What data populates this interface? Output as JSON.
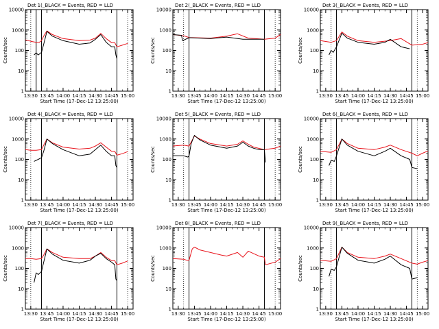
{
  "figure": {
    "background": "#ffffff",
    "axis_color": "#000000"
  },
  "chart_data": [
    {
      "type": "line",
      "title": "Det  1(_BLACK = Events, RED = LLD",
      "xlabel": "Start Time (17-Dec-12 13:25:00)",
      "ylabel": "Counts/sec",
      "xlim": [
        "13:25",
        "15:05"
      ],
      "ylim": [
        1,
        10000
      ],
      "ylog": true,
      "xtick_labels": [
        "13:30",
        "13:45",
        "14:00",
        "14:15",
        "14:30",
        "14:45",
        "15:00"
      ],
      "ytick_labels": [
        "1",
        "10",
        "100",
        "1000",
        "10000"
      ],
      "vlines_dotted": [
        "13:30",
        "15:00"
      ],
      "vlines_solid": [
        "13:35",
        "13:40",
        "14:50"
      ],
      "series": [
        {
          "color": "#000000",
          "x": [
            "13:33",
            "13:35",
            "13:37",
            "13:40",
            "13:42",
            "13:45",
            "13:50",
            "14:00",
            "14:15",
            "14:25",
            "14:30",
            "14:35",
            "14:40",
            "14:45",
            "14:48",
            "14:49",
            "14:50"
          ],
          "y": [
            60,
            75,
            60,
            80,
            200,
            850,
            500,
            300,
            200,
            230,
            350,
            600,
            250,
            150,
            150,
            60,
            40
          ]
        },
        {
          "color": "#e8141c",
          "x": [
            "13:25",
            "13:30",
            "13:35",
            "13:38",
            "13:40",
            "13:42",
            "13:45",
            "13:50",
            "14:00",
            "14:15",
            "14:25",
            "14:30",
            "14:35",
            "14:40",
            "14:45",
            "14:48",
            "14:50",
            "14:55",
            "15:00"
          ],
          "y": [
            330,
            280,
            250,
            250,
            300,
            500,
            900,
            600,
            380,
            300,
            320,
            400,
            680,
            380,
            240,
            240,
            150,
            180,
            220
          ]
        }
      ]
    },
    {
      "type": "line",
      "title": "Det  2(_BLACK = Events, RED = LLD",
      "xlabel": "Start Time (17-Dec-12 13:25:00)",
      "ylabel": "Counts/sec",
      "xlim": [
        "13:25",
        "15:05"
      ],
      "ylim": [
        1,
        10000
      ],
      "ylog": true,
      "xtick_labels": [
        "13:30",
        "13:45",
        "14:00",
        "14:15",
        "14:30",
        "14:45",
        "15:00"
      ],
      "ytick_labels": [
        "1",
        "10",
        "100",
        "1000",
        "10000"
      ],
      "vlines_dotted": [
        "13:35",
        "15:00"
      ],
      "vlines_solid": [
        "13:40",
        "14:50"
      ],
      "series": [
        {
          "color": "#000000",
          "x": [
            "13:25",
            "13:33",
            "13:34",
            "13:40",
            "14:00",
            "14:15",
            "14:30",
            "14:45",
            "14:50"
          ],
          "y": [
            600,
            550,
            300,
            420,
            380,
            450,
            350,
            350,
            350
          ]
        },
        {
          "color": "#e8141c",
          "x": [
            "13:25",
            "13:35",
            "13:40",
            "14:00",
            "14:15",
            "14:25",
            "14:35",
            "14:50",
            "15:00",
            "15:05"
          ],
          "y": [
            600,
            520,
            430,
            400,
            500,
            650,
            400,
            350,
            400,
            600
          ]
        }
      ]
    },
    {
      "type": "line",
      "title": "Det  3(_BLACK = Events, RED = LLD",
      "xlabel": "Start Time (17-Dec-12 13:25:00)",
      "ylabel": "Counts/sec",
      "xlim": [
        "13:25",
        "15:05"
      ],
      "ylim": [
        1,
        10000
      ],
      "ylog": true,
      "xtick_labels": [
        "13:30",
        "13:45",
        "14:00",
        "14:15",
        "14:30",
        "14:45",
        "15:00"
      ],
      "ytick_labels": [
        "1",
        "10",
        "100",
        "1000",
        "10000"
      ],
      "vlines_dotted": [
        "13:35",
        "14:55"
      ],
      "vlines_solid": [
        "13:40",
        "14:50"
      ],
      "series": [
        {
          "color": "#000000",
          "x": [
            "13:33",
            "13:35",
            "13:37",
            "13:40",
            "13:45",
            "13:50",
            "14:00",
            "14:15",
            "14:25",
            "14:30",
            "14:40",
            "14:48"
          ],
          "y": [
            60,
            100,
            80,
            150,
            700,
            400,
            250,
            200,
            250,
            350,
            150,
            120
          ]
        },
        {
          "color": "#e8141c",
          "x": [
            "13:25",
            "13:35",
            "13:40",
            "13:45",
            "13:50",
            "14:00",
            "14:15",
            "14:30",
            "14:40",
            "14:50",
            "15:00",
            "15:05"
          ],
          "y": [
            300,
            250,
            300,
            800,
            500,
            300,
            250,
            300,
            380,
            180,
            200,
            240
          ]
        }
      ]
    },
    {
      "type": "line",
      "title": "Det  4(_BLACK = Events, RED = LLD",
      "xlabel": "Start Time (17-Dec-12 13:25:00)",
      "ylabel": "Counts/sec",
      "xlim": [
        "13:25",
        "15:05"
      ],
      "ylim": [
        1,
        10000
      ],
      "ylog": true,
      "xtick_labels": [
        "13:30",
        "13:45",
        "14:00",
        "14:15",
        "14:30",
        "14:45",
        "15:00"
      ],
      "ytick_labels": [
        "1",
        "10",
        "100",
        "1000",
        "10000"
      ],
      "vlines_dotted": [
        "13:30",
        "15:00"
      ],
      "vlines_solid": [
        "13:40",
        "14:50"
      ],
      "series": [
        {
          "color": "#000000",
          "x": [
            "13:33",
            "13:37",
            "13:40",
            "13:42",
            "13:45",
            "13:50",
            "14:00",
            "14:15",
            "14:25",
            "14:30",
            "14:35",
            "14:40",
            "14:45",
            "14:48",
            "14:49",
            "14:50"
          ],
          "y": [
            80,
            100,
            120,
            250,
            1000,
            600,
            300,
            150,
            180,
            300,
            500,
            250,
            150,
            150,
            50,
            40
          ]
        },
        {
          "color": "#e8141c",
          "x": [
            "13:25",
            "13:30",
            "13:35",
            "13:40",
            "13:42",
            "13:45",
            "13:50",
            "14:00",
            "14:15",
            "14:25",
            "14:30",
            "14:35",
            "14:40",
            "14:45",
            "14:48",
            "14:50",
            "14:55",
            "15:00"
          ],
          "y": [
            300,
            280,
            280,
            300,
            500,
            1000,
            650,
            400,
            320,
            350,
            450,
            650,
            400,
            250,
            250,
            160,
            190,
            240
          ]
        }
      ]
    },
    {
      "type": "line",
      "title": "Det  5(_BLACK = Events, RED = LLD",
      "xlabel": "Start Time (17-Dec-12 13:25:00)",
      "ylabel": "Counts/sec",
      "xlim": [
        "13:25",
        "15:05"
      ],
      "ylim": [
        1,
        10000
      ],
      "ylog": true,
      "xtick_labels": [
        "13:30",
        "13:45",
        "14:00",
        "14:15",
        "14:30",
        "14:45",
        "15:00"
      ],
      "ytick_labels": [
        "1",
        "10",
        "100",
        "1000",
        "10000"
      ],
      "vlines_dotted": [
        "13:35",
        "15:00"
      ],
      "vlines_solid": [
        "13:40",
        "14:50"
      ],
      "series": [
        {
          "color": "#000000",
          "x": [
            "13:25",
            "13:35",
            "13:39",
            "13:40",
            "13:42",
            "13:45",
            "13:50",
            "14:00",
            "14:15",
            "14:25",
            "14:30",
            "14:35",
            "14:40",
            "14:45",
            "14:50",
            "14:51"
          ],
          "y": [
            150,
            150,
            130,
            150,
            600,
            1500,
            900,
            500,
            350,
            450,
            700,
            450,
            350,
            300,
            300,
            70
          ]
        },
        {
          "color": "#e8141c",
          "x": [
            "13:25",
            "13:35",
            "13:40",
            "13:42",
            "13:45",
            "13:50",
            "14:00",
            "14:15",
            "14:25",
            "14:30",
            "14:35",
            "14:40",
            "14:50",
            "15:00",
            "15:05"
          ],
          "y": [
            450,
            500,
            450,
            700,
            1400,
            1000,
            600,
            450,
            550,
            800,
            550,
            400,
            300,
            350,
            450
          ]
        }
      ]
    },
    {
      "type": "line",
      "title": "Det  6(_BLACK = Events, RED = LLD",
      "xlabel": "Start Time (17-Dec-12 13:25:00)",
      "ylabel": "Counts/sec",
      "xlim": [
        "13:25",
        "15:05"
      ],
      "ylim": [
        1,
        10000
      ],
      "ylog": true,
      "xtick_labels": [
        "13:30",
        "13:45",
        "14:00",
        "14:15",
        "14:30",
        "14:45",
        "15:00"
      ],
      "ytick_labels": [
        "1",
        "10",
        "100",
        "1000",
        "10000"
      ],
      "vlines_dotted": [
        "13:35",
        "14:55"
      ],
      "vlines_solid": [
        "13:40",
        "14:50"
      ],
      "series": [
        {
          "color": "#000000",
          "x": [
            "13:33",
            "13:35",
            "13:38",
            "13:40",
            "13:45",
            "13:50",
            "14:00",
            "14:15",
            "14:25",
            "14:30",
            "14:40",
            "14:48",
            "14:50",
            "14:55"
          ],
          "y": [
            50,
            90,
            80,
            150,
            1000,
            500,
            250,
            150,
            250,
            350,
            150,
            100,
            40,
            35
          ]
        },
        {
          "color": "#e8141c",
          "x": [
            "13:25",
            "13:35",
            "13:40",
            "13:45",
            "13:50",
            "14:00",
            "14:15",
            "14:25",
            "14:30",
            "14:40",
            "14:50",
            "14:55",
            "15:00",
            "15:05"
          ],
          "y": [
            250,
            220,
            300,
            1000,
            600,
            350,
            300,
            400,
            500,
            300,
            200,
            150,
            200,
            260
          ]
        }
      ]
    },
    {
      "type": "line",
      "title": "Det  7(_BLACK = Events, RED = LLD",
      "xlabel": "Start Time (17-Dec-12 13:25:00)",
      "ylabel": "Counts/sec",
      "xlim": [
        "13:25",
        "15:05"
      ],
      "ylim": [
        1,
        10000
      ],
      "ylog": true,
      "xtick_labels": [
        "13:30",
        "13:45",
        "14:00",
        "14:15",
        "14:30",
        "14:45",
        "15:00"
      ],
      "ytick_labels": [
        "1",
        "10",
        "100",
        "1000",
        "10000"
      ],
      "vlines_dotted": [
        "13:30",
        "15:00"
      ],
      "vlines_solid": [
        "13:40",
        "14:50"
      ],
      "series": [
        {
          "color": "#000000",
          "x": [
            "13:33",
            "13:35",
            "13:37",
            "13:40",
            "13:42",
            "13:45",
            "13:50",
            "14:00",
            "14:15",
            "14:25",
            "14:30",
            "14:35",
            "14:40",
            "14:45",
            "14:48",
            "14:49",
            "14:50"
          ],
          "y": [
            20,
            60,
            50,
            70,
            200,
            900,
            500,
            250,
            180,
            250,
            400,
            550,
            300,
            200,
            150,
            30,
            25
          ]
        },
        {
          "color": "#e8141c",
          "x": [
            "13:25",
            "13:30",
            "13:35",
            "13:40",
            "13:42",
            "13:45",
            "13:50",
            "14:00",
            "14:15",
            "14:25",
            "14:30",
            "14:35",
            "14:40",
            "14:45",
            "14:48",
            "14:50",
            "14:55",
            "15:00"
          ],
          "y": [
            300,
            300,
            280,
            300,
            450,
            900,
            600,
            350,
            300,
            300,
            400,
            600,
            350,
            240,
            240,
            150,
            180,
            230
          ]
        }
      ]
    },
    {
      "type": "line",
      "title": "Det  8(_BLACK = Events, RED = LLD",
      "xlabel": "Start Time (17-Dec-12 13:25:00)",
      "ylabel": "Counts/sec",
      "xlim": [
        "13:25",
        "15:05"
      ],
      "ylim": [
        1,
        10000
      ],
      "ylog": true,
      "xtick_labels": [
        "13:30",
        "13:45",
        "14:00",
        "14:15",
        "14:30",
        "14:45",
        "15:00"
      ],
      "ytick_labels": [
        "1",
        "10",
        "100",
        "1000",
        "10000"
      ],
      "vlines_dotted": [
        "13:35",
        "15:00"
      ],
      "vlines_solid": [
        "13:40",
        "14:50"
      ],
      "series": [
        {
          "color": "#e8141c",
          "x": [
            "13:25",
            "13:35",
            "13:38",
            "13:40",
            "13:43",
            "13:45",
            "13:50",
            "14:00",
            "14:10",
            "14:15",
            "14:25",
            "14:30",
            "14:35",
            "14:45",
            "14:50",
            "14:51",
            "15:00",
            "15:05"
          ],
          "y": [
            300,
            280,
            250,
            250,
            900,
            1100,
            800,
            600,
            450,
            400,
            600,
            350,
            700,
            400,
            350,
            150,
            200,
            300
          ]
        }
      ]
    },
    {
      "type": "line",
      "title": "Det  9(_BLACK = Events, RED = LLD",
      "xlabel": "Start Time (17-Dec-12 13:25:00)",
      "ylabel": "Counts/sec",
      "xlim": [
        "13:25",
        "15:05"
      ],
      "ylim": [
        1,
        10000
      ],
      "ylog": true,
      "xtick_labels": [
        "13:30",
        "13:45",
        "14:00",
        "14:15",
        "14:30",
        "14:45",
        "15:00"
      ],
      "ytick_labels": [
        "1",
        "10",
        "100",
        "1000",
        "10000"
      ],
      "vlines_dotted": [
        "13:35",
        "14:55"
      ],
      "vlines_solid": [
        "13:40",
        "14:50"
      ],
      "series": [
        {
          "color": "#000000",
          "x": [
            "13:33",
            "13:35",
            "13:38",
            "13:40",
            "13:45",
            "13:50",
            "14:00",
            "14:15",
            "14:25",
            "14:30",
            "14:40",
            "14:48",
            "14:50",
            "14:55"
          ],
          "y": [
            40,
            90,
            80,
            120,
            1100,
            550,
            250,
            180,
            280,
            400,
            150,
            100,
            30,
            35
          ]
        },
        {
          "color": "#e8141c",
          "x": [
            "13:25",
            "13:35",
            "13:40",
            "13:45",
            "13:50",
            "14:00",
            "14:15",
            "14:25",
            "14:30",
            "14:40",
            "14:50",
            "14:55",
            "15:00",
            "15:05"
          ],
          "y": [
            250,
            220,
            300,
            1100,
            600,
            350,
            300,
            400,
            500,
            300,
            180,
            160,
            200,
            240
          ]
        }
      ]
    }
  ]
}
